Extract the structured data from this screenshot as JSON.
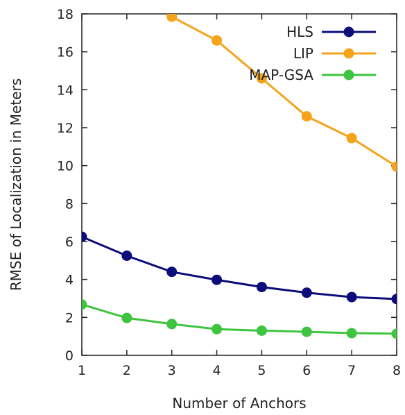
{
  "chart_data": {
    "type": "line",
    "title": "",
    "xlabel": "Number of Anchors",
    "ylabel": "RMSE of Localization in Meters",
    "xlim": [
      1,
      8
    ],
    "ylim": [
      0,
      18
    ],
    "x_ticks": [
      1,
      2,
      3,
      4,
      5,
      6,
      7,
      8
    ],
    "y_ticks": [
      0,
      2,
      4,
      6,
      8,
      10,
      12,
      14,
      16,
      18
    ],
    "grid": false,
    "legend_position": "top-right",
    "series": [
      {
        "name": "HLS",
        "color": "#0c0c7a",
        "x": [
          1,
          2,
          3,
          4,
          5,
          6,
          7,
          8
        ],
        "values": [
          6.25,
          5.25,
          4.4,
          3.98,
          3.6,
          3.3,
          3.07,
          2.97
        ]
      },
      {
        "name": "LIP",
        "color": "#f5a31b",
        "x": [
          3,
          4,
          5,
          6,
          7,
          8
        ],
        "values": [
          17.85,
          16.6,
          14.6,
          12.6,
          11.45,
          9.95
        ]
      },
      {
        "name": "MAP-GSA",
        "color": "#3ec43e",
        "x": [
          1,
          2,
          3,
          4,
          5,
          6,
          7,
          8
        ],
        "values": [
          2.68,
          1.97,
          1.65,
          1.38,
          1.3,
          1.24,
          1.17,
          1.14
        ]
      }
    ]
  }
}
